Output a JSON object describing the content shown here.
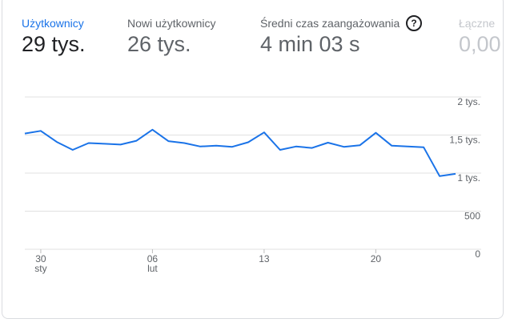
{
  "metrics": [
    {
      "label": "Użytkownicy",
      "value": "29 tys."
    },
    {
      "label": "Nowi użytkownicy",
      "value": "26 tys."
    },
    {
      "label": "Średni czas zaangażowania",
      "value": "4 min 03 s"
    },
    {
      "label": "Łączne",
      "value": "0,00"
    }
  ],
  "help_icon": {
    "name": "help-circle-icon",
    "glyph": "?"
  },
  "colors": {
    "accent": "#1a73e8",
    "line": "#1a73e8",
    "grid": "#e0e0e0"
  },
  "chart_data": {
    "type": "line",
    "ylim": [
      0,
      2000
    ],
    "y_ticks": [
      {
        "value": 2000,
        "label": "2 tys."
      },
      {
        "value": 1500,
        "label": "1,5 tys."
      },
      {
        "value": 1000,
        "label": "1 tys."
      },
      {
        "value": 500,
        "label": "500"
      },
      {
        "value": 0,
        "label": "0"
      }
    ],
    "x_ticks": [
      {
        "day": 30,
        "day_label": "30",
        "month_label": "sty"
      },
      {
        "day": 37,
        "day_label": "06",
        "month_label": "lut"
      },
      {
        "day": 44,
        "day_label": "13",
        "month_label": ""
      },
      {
        "day": 51,
        "day_label": "20",
        "month_label": ""
      }
    ],
    "x": [
      29,
      30,
      31,
      32,
      33,
      34,
      35,
      36,
      37,
      38,
      39,
      40,
      41,
      42,
      43,
      44,
      45,
      46,
      47,
      48,
      49,
      50,
      51,
      52,
      53,
      54,
      55,
      56
    ],
    "series": [
      {
        "values": [
          1520,
          1555,
          1410,
          1305,
          1395,
          1385,
          1375,
          1425,
          1570,
          1420,
          1395,
          1350,
          1360,
          1345,
          1405,
          1535,
          1305,
          1350,
          1330,
          1400,
          1345,
          1365,
          1530,
          1360,
          1350,
          1340,
          960,
          990
        ]
      }
    ],
    "grid": true
  }
}
